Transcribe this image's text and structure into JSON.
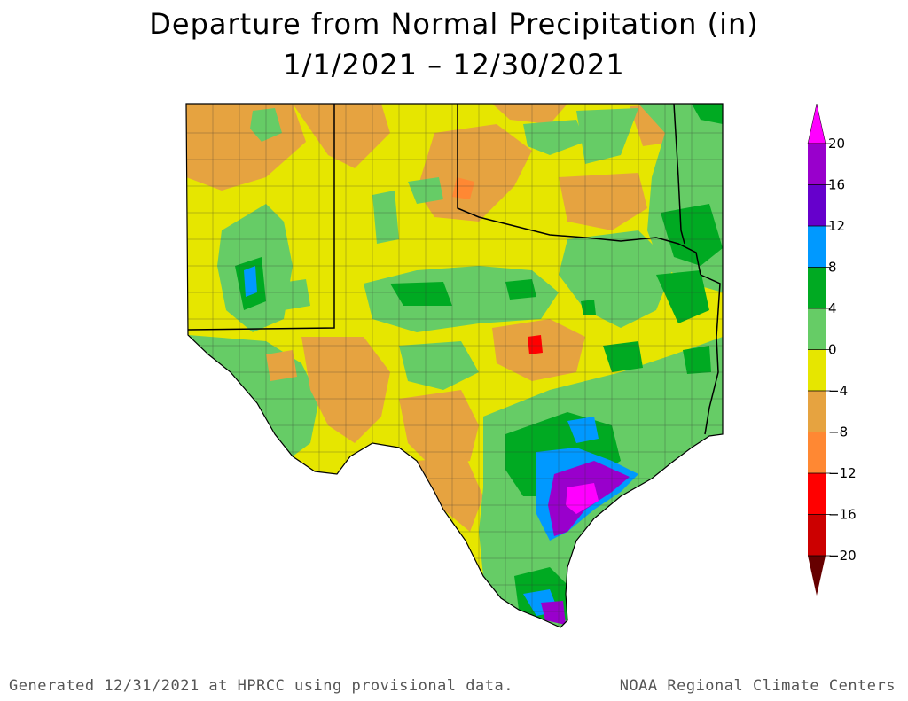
{
  "title": {
    "line1": "Departure from Normal Precipitation (in)",
    "line2": "1/1/2021 – 12/30/2021"
  },
  "legend": {
    "bins": [
      {
        "label": "20",
        "color": "#ff00ff"
      },
      {
        "label": "16",
        "color": "#9900cc"
      },
      {
        "label": "12",
        "color": "#6600cc"
      },
      {
        "label": "8",
        "color": "#0099ff"
      },
      {
        "label": "4",
        "color": "#00aa22"
      },
      {
        "label": "0",
        "color": "#66cc66"
      },
      {
        "label": "−4",
        "color": "#e6e600"
      },
      {
        "label": "−8",
        "color": "#e6a340"
      },
      {
        "label": "−12",
        "color": "#ff8833"
      },
      {
        "label": "−16",
        "color": "#ff0000"
      },
      {
        "label": "−20",
        "color": "#cc0000"
      }
    ],
    "bottom_color": "#660000"
  },
  "footer": {
    "left": "Generated 12/31/2021 at HPRCC using provisional data.",
    "right": "NOAA Regional Climate Centers"
  }
}
